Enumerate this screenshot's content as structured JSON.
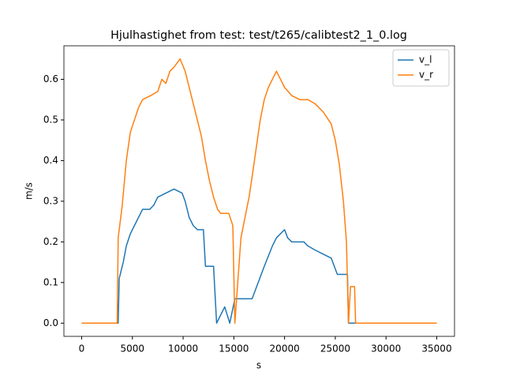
{
  "chart_data": {
    "type": "line",
    "title": "Hjulhastighet from test: test/t265/calibtest2_1_0.log",
    "x_label": "s",
    "y_label": "m/s",
    "series": [
      {
        "name": "v_l",
        "color": "#1f77b4",
        "x": [
          0,
          3600,
          3700,
          4100,
          4400,
          4800,
          5200,
          5600,
          6000,
          6700,
          7100,
          7500,
          8300,
          9100,
          9900,
          10200,
          10600,
          11000,
          11400,
          12000,
          12200,
          13000,
          13300,
          14100,
          14600,
          15100,
          16800,
          18000,
          18800,
          19200,
          20000,
          20300,
          20700,
          21900,
          22300,
          23000,
          23800,
          24600,
          25200,
          26200,
          26300,
          35000
        ],
        "values": [
          0,
          0,
          0.11,
          0.15,
          0.19,
          0.22,
          0.24,
          0.26,
          0.28,
          0.28,
          0.29,
          0.31,
          0.32,
          0.33,
          0.32,
          0.3,
          0.26,
          0.24,
          0.23,
          0.23,
          0.14,
          0.14,
          0,
          0.04,
          0,
          0.06,
          0.06,
          0.14,
          0.19,
          0.21,
          0.23,
          0.21,
          0.2,
          0.2,
          0.19,
          0.18,
          0.17,
          0.16,
          0.12,
          0.12,
          0,
          0
        ]
      },
      {
        "name": "v_r",
        "color": "#ff7f0e",
        "x": [
          0,
          3500,
          3600,
          4000,
          4400,
          4800,
          5200,
          5600,
          6000,
          6800,
          7500,
          7900,
          8300,
          8700,
          9100,
          9700,
          10200,
          10600,
          11000,
          11400,
          11800,
          12200,
          12600,
          13000,
          13400,
          13700,
          14500,
          14900,
          15100,
          15700,
          16100,
          16500,
          16800,
          17200,
          17600,
          18000,
          18400,
          18800,
          19200,
          19600,
          20000,
          20700,
          21500,
          22300,
          23000,
          23800,
          24600,
          25000,
          25400,
          25800,
          26100,
          26300,
          26500,
          26900,
          27000,
          35000
        ],
        "values": [
          0,
          0,
          0.21,
          0.29,
          0.4,
          0.47,
          0.5,
          0.53,
          0.55,
          0.56,
          0.57,
          0.6,
          0.59,
          0.62,
          0.63,
          0.65,
          0.62,
          0.58,
          0.54,
          0.5,
          0.46,
          0.4,
          0.35,
          0.31,
          0.28,
          0.27,
          0.27,
          0.24,
          0,
          0.21,
          0.26,
          0.31,
          0.36,
          0.43,
          0.5,
          0.55,
          0.58,
          0.6,
          0.62,
          0.6,
          0.58,
          0.56,
          0.55,
          0.55,
          0.54,
          0.52,
          0.49,
          0.45,
          0.39,
          0.3,
          0.2,
          0,
          0.09,
          0.09,
          0,
          0
        ]
      }
    ],
    "xlim": [
      -1750,
      36750
    ],
    "ylim": [
      -0.0325,
      0.6825
    ],
    "xticks": [
      0,
      5000,
      10000,
      15000,
      20000,
      25000,
      30000,
      35000
    ],
    "yticks": [
      {
        "value": 0,
        "label": "0.0"
      },
      0.1,
      0.2,
      0.3,
      0.4,
      0.5,
      0.6
    ],
    "grid": false,
    "legend": "upper right"
  }
}
